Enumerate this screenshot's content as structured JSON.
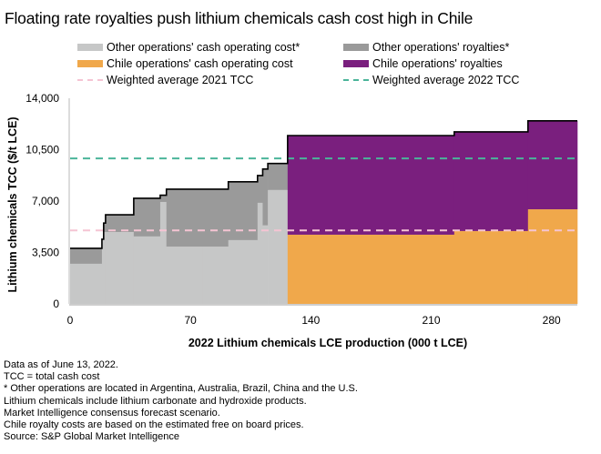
{
  "chart_data": {
    "type": "area",
    "subtype": "cost-curve",
    "title": "Floating rate royalties push lithium chemicals cash cost high in Chile",
    "xlabel": "2022 Lithium chemicals LCE production (000 t LCE)",
    "ylabel": "Lithium chemicals TCC ($/t LCE)",
    "xlim": [
      0,
      295
    ],
    "ylim": [
      0,
      14000
    ],
    "xticks": [
      0,
      70,
      140,
      210,
      280
    ],
    "xtick_labels": [
      "0",
      "70",
      "140",
      "210",
      "280"
    ],
    "yticks": [
      0,
      3500,
      7000,
      10500,
      14000
    ],
    "ytick_labels": [
      "0",
      "3,500",
      "7,000",
      "10,500",
      "14,000"
    ],
    "grid": false,
    "legend": {
      "placement": "top",
      "items": [
        {
          "label": "Other operations' cash operating cost*",
          "kind": "swatch",
          "color": "#c6c7c7"
        },
        {
          "label": "Other operations' royalties*",
          "kind": "swatch",
          "color": "#9a9a9a"
        },
        {
          "label": "Chile operations' cash operating cost",
          "kind": "swatch",
          "color": "#f0a84b"
        },
        {
          "label": "Chile operations' royalties",
          "kind": "swatch",
          "color": "#7a1f7e"
        },
        {
          "label": "Weighted average 2021 TCC",
          "kind": "dash",
          "color": "#f5c4d3"
        },
        {
          "label": "Weighted average 2022 TCC",
          "kind": "dash",
          "color": "#4bb59a"
        }
      ]
    },
    "colors": {
      "other_cash": "#c6c7c7",
      "other_royalty": "#9a9a9a",
      "chile_cash": "#f0a84b",
      "chile_royalty": "#7a1f7e",
      "avg_2021": "#f5c4d3",
      "avg_2022": "#4bb59a",
      "outline": "#000000"
    },
    "series": [
      {
        "name": "Other operations",
        "group": "other",
        "x0": 0,
        "x1": 18.5,
        "cash_cost": 2730,
        "total_cost": 3780
      },
      {
        "name": "Other operations",
        "group": "other",
        "x0": 18.5,
        "x1": 19.5,
        "cash_cost": 4400,
        "total_cost": 4400
      },
      {
        "name": "Other operations",
        "group": "other",
        "x0": 19.5,
        "x1": 20.6,
        "cash_cost": 4890,
        "total_cost": 5500
      },
      {
        "name": "Other operations",
        "group": "other",
        "x0": 20.6,
        "x1": 37,
        "cash_cost": 4890,
        "total_cost": 6070
      },
      {
        "name": "Other operations",
        "group": "other",
        "x0": 37,
        "x1": 52.4,
        "cash_cost": 4590,
        "total_cost": 7190
      },
      {
        "name": "Other operations",
        "group": "other",
        "x0": 52.4,
        "x1": 56,
        "cash_cost": 6940,
        "total_cost": 7400
      },
      {
        "name": "Other operations",
        "group": "other",
        "x0": 56,
        "x1": 77,
        "cash_cost": 3900,
        "total_cost": 7810
      },
      {
        "name": "Other operations",
        "group": "other",
        "x0": 77,
        "x1": 92,
        "cash_cost": 3900,
        "total_cost": 7810
      },
      {
        "name": "Other operations",
        "group": "other",
        "x0": 92,
        "x1": 109,
        "cash_cost": 4340,
        "total_cost": 8310
      },
      {
        "name": "Other operations",
        "group": "other",
        "x0": 109,
        "x1": 112,
        "cash_cost": 6880,
        "total_cost": 8740
      },
      {
        "name": "Other operations",
        "group": "other",
        "x0": 112,
        "x1": 115,
        "cash_cost": 5340,
        "total_cost": 9180
      },
      {
        "name": "Other operations",
        "group": "other",
        "x0": 115,
        "x1": 126.5,
        "cash_cost": 7750,
        "total_cost": 9560
      },
      {
        "name": "Chile operations",
        "group": "chile",
        "x0": 126.5,
        "x1": 223.4,
        "cash_cost": 4710,
        "total_cost": 11460
      },
      {
        "name": "Chile operations",
        "group": "chile",
        "x0": 223.4,
        "x1": 266.3,
        "cash_cost": 4960,
        "total_cost": 11710
      },
      {
        "name": "Chile operations",
        "group": "chile",
        "x0": 266.3,
        "x1": 295,
        "cash_cost": 6440,
        "total_cost": 12460
      }
    ],
    "reference_lines": [
      {
        "name": "Weighted average 2021 TCC",
        "y": 5000
      },
      {
        "name": "Weighted average 2022 TCC",
        "y": 9900
      }
    ]
  },
  "notes": [
    "Data as of June 13, 2022.",
    "TCC = total cash cost",
    "* Other operations are located in Argentina, Australia, Brazil, China and the U.S.",
    "Lithium chemicals include lithium carbonate and hydroxide products.",
    "Market Intelligence consensus forecast scenario.",
    "Chile royalty costs are based on the estimated free on board prices.",
    "Source: S&P Global Market Intelligence"
  ]
}
